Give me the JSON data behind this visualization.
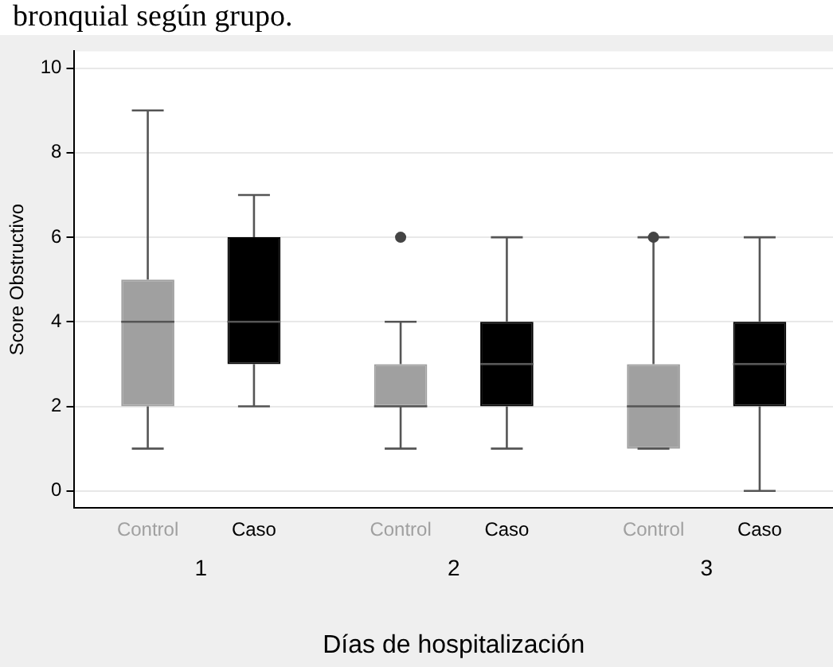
{
  "chart_data": {
    "type": "box",
    "title": "bronquial según grupo.",
    "xlabel": "Días de hospitalización",
    "ylabel": "Score Obstructivo",
    "categories": [
      "1",
      "2",
      "3"
    ],
    "ylim": [
      -0.4,
      10.4
    ],
    "yticks": [
      0,
      2,
      4,
      6,
      8,
      10
    ],
    "grid": "y",
    "series": [
      {
        "name": "Control",
        "color": "#a0a0a0",
        "boxes": [
          {
            "low": 1,
            "q1": 2,
            "median": 4,
            "q3": 5,
            "high": 9
          },
          {
            "low": 1,
            "q1": 2,
            "median": 2,
            "q3": 3,
            "high": 4,
            "outliers": [
              6
            ]
          },
          {
            "low": 1,
            "q1": 1,
            "median": 2,
            "q3": 3,
            "high": 6,
            "outliers": [
              6
            ]
          }
        ]
      },
      {
        "name": "Caso",
        "color": "#000000",
        "boxes": [
          {
            "low": 2,
            "q1": 3,
            "median": 4,
            "q3": 6,
            "high": 7
          },
          {
            "low": 1,
            "q1": 2,
            "median": 3,
            "q3": 4,
            "high": 6
          },
          {
            "low": 0,
            "q1": 2,
            "median": 3,
            "q3": 4,
            "high": 6
          }
        ]
      }
    ]
  }
}
